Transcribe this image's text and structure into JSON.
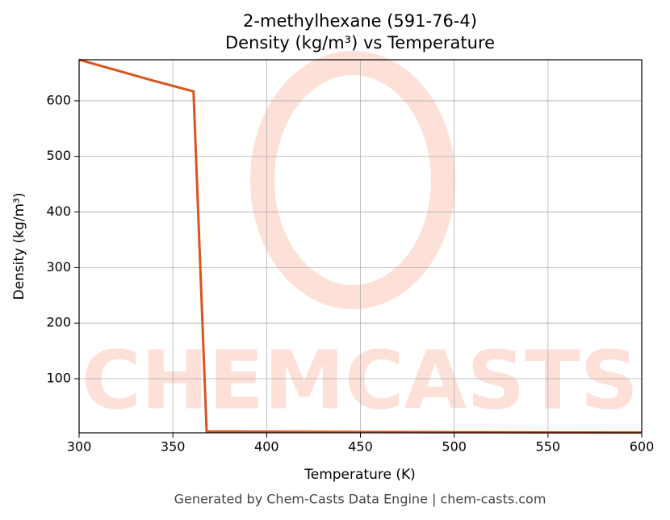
{
  "chart_data": {
    "type": "line",
    "title": [
      "2-methylhexane (591-76-4)",
      "Density (kg/m³) vs Temperature"
    ],
    "x_label": "Temperature (K)",
    "y_label": "Density (kg/m³)",
    "footer": "Generated by Chem-Casts Data Engine | chem-casts.com",
    "watermark": "CHEMCASTS",
    "x": [
      300,
      320,
      340,
      361,
      368,
      400,
      450,
      500,
      550,
      600
    ],
    "series": [
      {
        "name": "Density",
        "color": "#d9541f",
        "values": [
          674,
          655,
          636,
          617,
          5,
          4.6,
          4.1,
          3.7,
          3.4,
          3.1
        ]
      }
    ],
    "xlim": [
      300,
      600
    ],
    "ylim": [
      2.6,
      674
    ],
    "xticks": [
      300,
      350,
      400,
      450,
      500,
      550,
      600
    ],
    "yticks": [
      100,
      200,
      300,
      400,
      500,
      600
    ],
    "grid": true
  }
}
